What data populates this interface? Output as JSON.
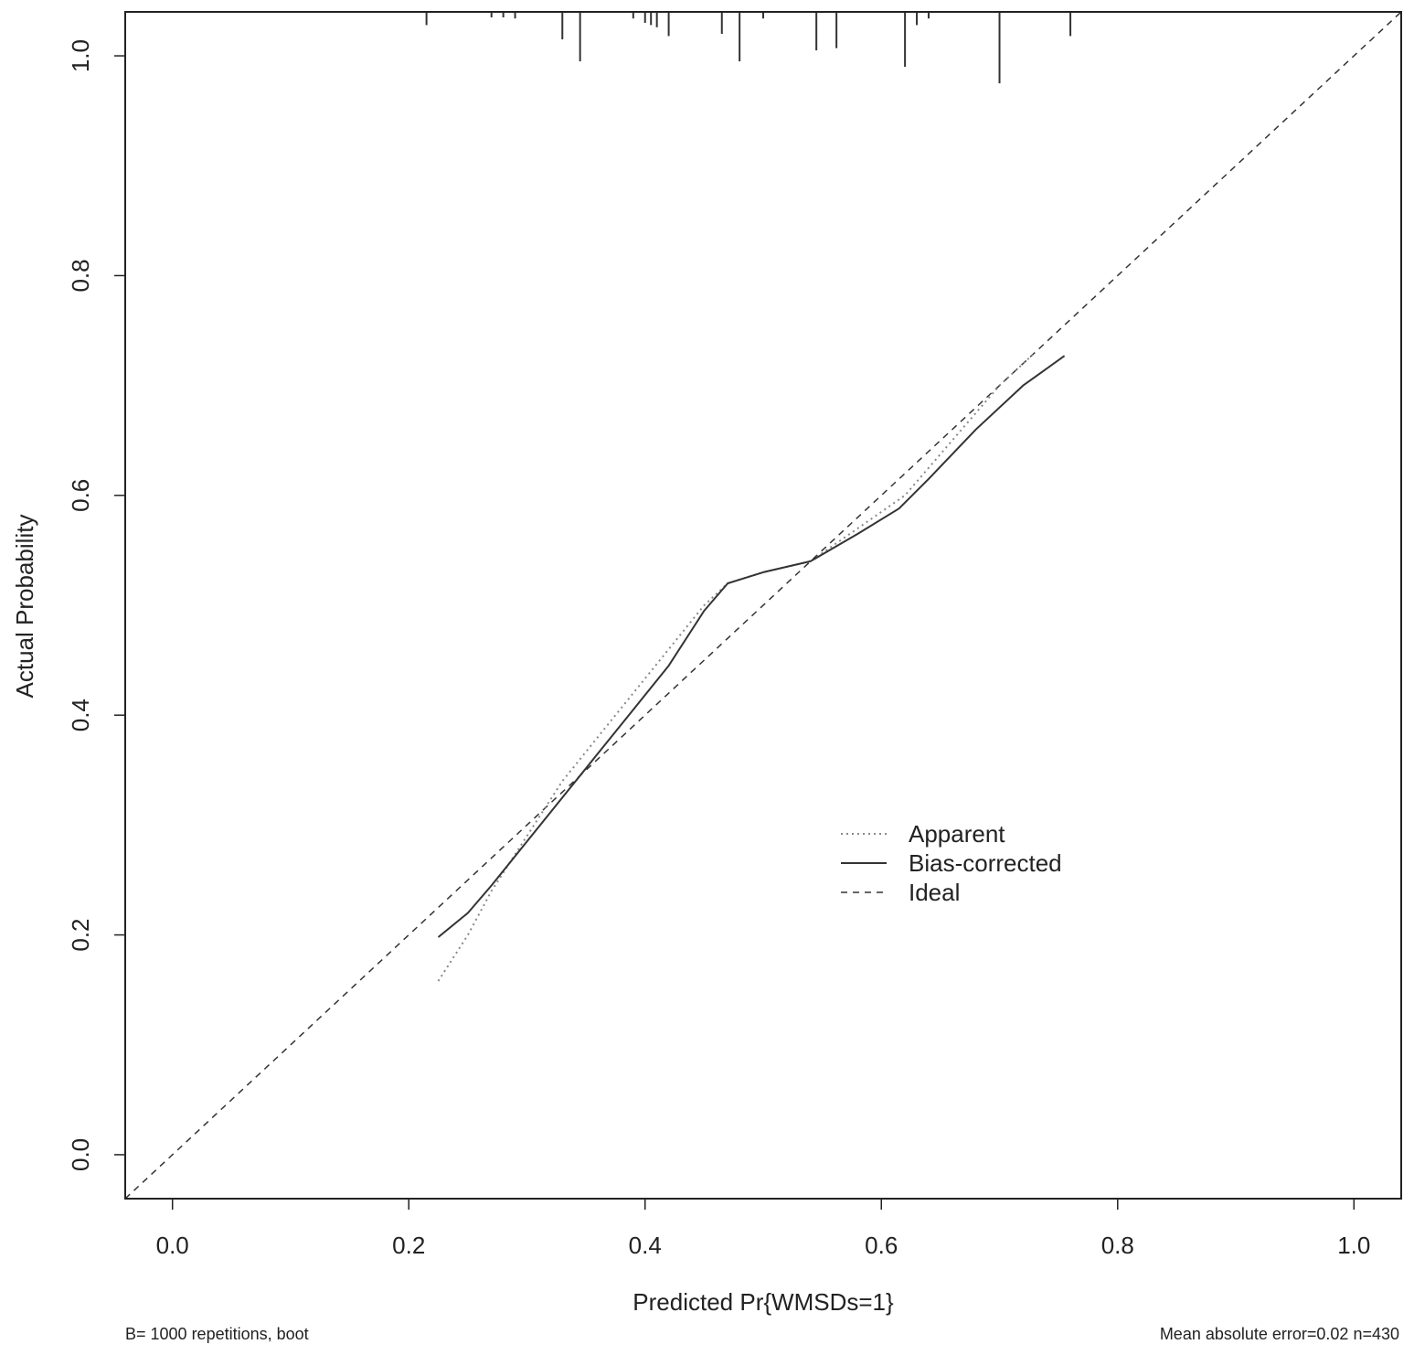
{
  "chart_data": {
    "type": "line",
    "title": "",
    "xlabel": "Predicted Pr{WMSDs=1}",
    "ylabel": "Actual Probability",
    "xlim": [
      -0.04,
      1.04
    ],
    "ylim": [
      -0.04,
      1.04
    ],
    "x_ticks": [
      0.0,
      0.2,
      0.4,
      0.6,
      0.8,
      1.0
    ],
    "x_tick_labels": [
      "0.0",
      "0.2",
      "0.4",
      "0.6",
      "0.8",
      "1.0"
    ],
    "y_ticks": [
      0.0,
      0.2,
      0.4,
      0.6,
      0.8,
      1.0
    ],
    "y_tick_labels": [
      "0.0",
      "0.2",
      "0.4",
      "0.6",
      "0.8",
      "1.0"
    ],
    "grid": false,
    "legend_position": "center-right",
    "series": [
      {
        "name": "Apparent",
        "line_style": "dotted",
        "color": "#888888",
        "x": [
          0.225,
          0.25,
          0.27,
          0.3,
          0.33,
          0.36,
          0.39,
          0.42,
          0.45,
          0.47,
          0.5,
          0.54,
          0.58,
          0.62,
          0.66,
          0.7,
          0.72,
          0.73
        ],
        "y": [
          0.158,
          0.2,
          0.24,
          0.29,
          0.34,
          0.38,
          0.42,
          0.46,
          0.5,
          0.52,
          0.53,
          0.54,
          0.57,
          0.6,
          0.65,
          0.7,
          0.72,
          0.73
        ]
      },
      {
        "name": "Bias-corrected",
        "line_style": "solid",
        "color": "#333333",
        "x": [
          0.225,
          0.25,
          0.27,
          0.3,
          0.33,
          0.36,
          0.39,
          0.42,
          0.45,
          0.47,
          0.5,
          0.54,
          0.58,
          0.615,
          0.64,
          0.68,
          0.72,
          0.755
        ],
        "y": [
          0.198,
          0.22,
          0.245,
          0.285,
          0.325,
          0.365,
          0.405,
          0.445,
          0.495,
          0.52,
          0.53,
          0.54,
          0.565,
          0.588,
          0.615,
          0.66,
          0.7,
          0.727
        ]
      },
      {
        "name": "Ideal",
        "line_style": "dashed",
        "color": "#333333",
        "x": [
          -0.04,
          1.04
        ],
        "y": [
          -0.04,
          1.04
        ]
      }
    ],
    "rug": {
      "x": [
        0.215,
        0.27,
        0.28,
        0.29,
        0.33,
        0.345,
        0.39,
        0.4,
        0.405,
        0.41,
        0.42,
        0.465,
        0.48,
        0.5,
        0.545,
        0.562,
        0.62,
        0.63,
        0.64,
        0.7,
        0.76
      ],
      "h": [
        0.012,
        0.005,
        0.005,
        0.006,
        0.025,
        0.045,
        0.006,
        0.01,
        0.012,
        0.014,
        0.022,
        0.02,
        0.045,
        0.006,
        0.035,
        0.033,
        0.05,
        0.012,
        0.006,
        0.065,
        0.022
      ]
    },
    "annotations": {
      "footnote_left": "B= 1000 repetitions, boot",
      "footnote_right": "Mean absolute error=0.02 n=430"
    }
  }
}
